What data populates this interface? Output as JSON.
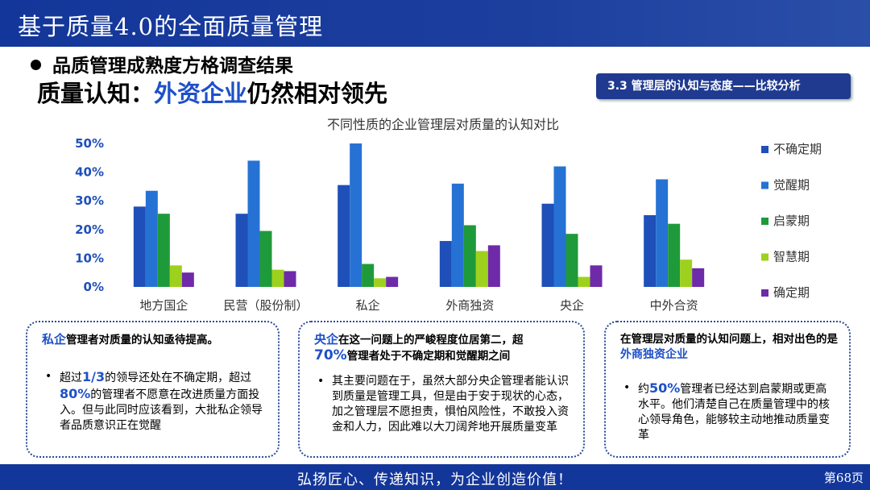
{
  "header": {
    "title": "基于质量4.0的全面质量管理"
  },
  "subtitle": "品质管理成熟度方格调查结果",
  "headline": {
    "prefix": "质量认知：",
    "highlight": "外资企业",
    "suffix": "仍然相对领先"
  },
  "tag": "3.3 管理层的认知与态度——比较分析",
  "chart_data": {
    "type": "bar",
    "title": "不同性质的企业管理层对质量的认知对比",
    "categories": [
      "地方国企",
      "民营（股份制）",
      "私企",
      "外商独资",
      "央企",
      "中外合资"
    ],
    "series": [
      {
        "name": "不确定期",
        "color": "#1f4fb8",
        "values": [
          28,
          25.5,
          35.5,
          16,
          29,
          25
        ]
      },
      {
        "name": "觉醒期",
        "color": "#2672d4",
        "values": [
          33.5,
          44,
          50,
          36,
          42,
          37.5
        ]
      },
      {
        "name": "启蒙期",
        "color": "#1f9a3a",
        "values": [
          25.5,
          19.5,
          8,
          21.5,
          18.5,
          22
        ]
      },
      {
        "name": "智慧期",
        "color": "#9ed11e",
        "values": [
          7.5,
          6,
          3,
          12.5,
          3.5,
          9.5
        ]
      },
      {
        "name": "确定期",
        "color": "#6e2aa8",
        "values": [
          5,
          5.5,
          3.5,
          14.5,
          7.5,
          6.5
        ]
      }
    ],
    "yticks": [
      "0%",
      "10%",
      "20%",
      "30%",
      "40%",
      "50%"
    ],
    "ylim": [
      0,
      50
    ],
    "legend_position": "right",
    "grid": false
  },
  "boxes": [
    {
      "head_pre": "",
      "head_hl": "私企",
      "head_rest": "管理者对质量的认知亟待提高。",
      "bullet_parts": [
        "超过",
        "1/3",
        "的领导还处在不确定期，超过",
        "80%",
        "的管理者不愿意在改进质量方面投入。但与此同时应该看到，大批私企领导者品质意识正在觉醒"
      ]
    },
    {
      "head_pre": "",
      "head_hl": "央企",
      "head_rest": "在这一问题上的严峻程度位居第二，超",
      "head_big": "70%",
      "head_rest2": "管理者处于不确定期和觉醒期之间",
      "bullet": "其主要问题在于，虽然大部分央企管理者能认识到质量是管理工具，但是由于安于现状的心态，加之管理层不愿担责，惧怕风险性，不敢投入资金和人力，因此难以大刀阔斧地开展质量变革"
    },
    {
      "head_pre": "在管理层对质量的认知问题上，相对出色的是",
      "head_hl": "外商独资企业",
      "head_rest": "",
      "bullet_parts": [
        "约",
        "50%",
        "管理者已经达到启蒙期或更高水平。他们清楚自己在质量管理中的核心领导角色，能够较主动地推动质量变革"
      ]
    }
  ],
  "footer": {
    "slogan": "弘扬匠心、传递知识，为企业创造价值！",
    "page": "第68页"
  }
}
